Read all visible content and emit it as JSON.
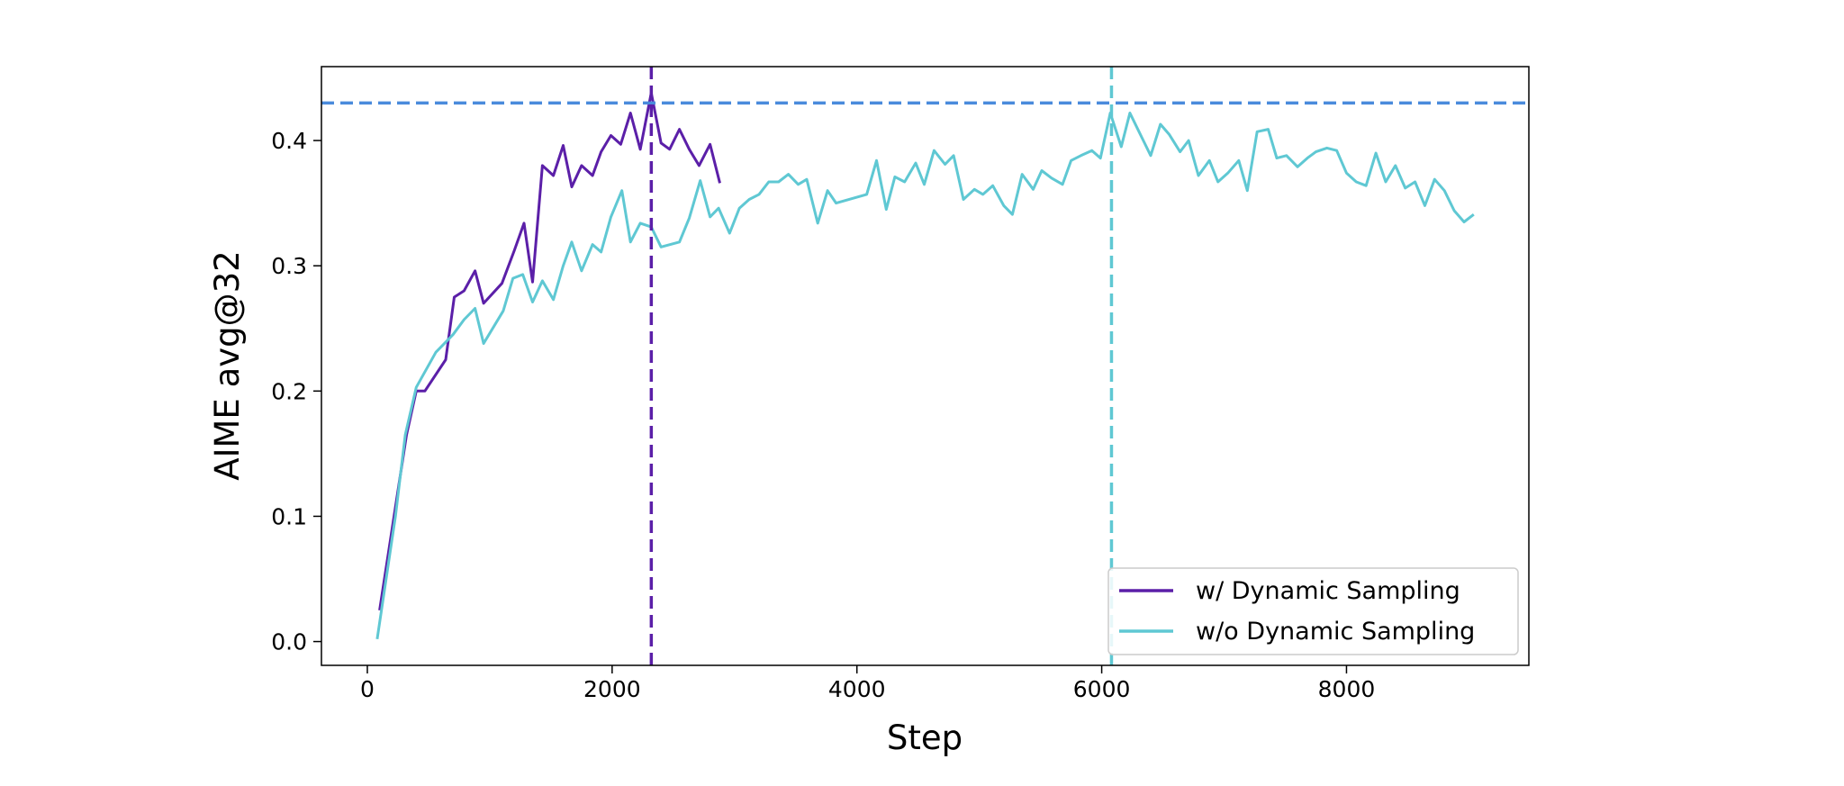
{
  "chart_data": {
    "type": "line",
    "xlabel": "Step",
    "ylabel": "AIME avg@32",
    "xlim": [
      -375,
      9490
    ],
    "ylim": [
      -0.019,
      0.459
    ],
    "xticks": [
      0,
      2000,
      4000,
      6000,
      8000
    ],
    "yticks": [
      {
        "value": 0,
        "label": "0.0"
      },
      0.1,
      0.2,
      0.3,
      0.4
    ],
    "legend": "lower right",
    "hlines": [
      {
        "value": 0.43,
        "color": "#4a8bdc"
      }
    ],
    "vlines": [
      {
        "value": 2320,
        "color": "#5b1fa8"
      },
      {
        "value": 6080,
        "color": "#5fc8d3"
      }
    ],
    "series": [
      {
        "name": "w/ Dynamic Sampling",
        "color": "#5b1fa8",
        "x": [
          100,
          320,
          400,
          470,
          640,
          710,
          790,
          880,
          950,
          1100,
          1200,
          1280,
          1350,
          1430,
          1520,
          1600,
          1670,
          1750,
          1840,
          1910,
          1990,
          2070,
          2150,
          2230,
          2320,
          2400,
          2470,
          2550,
          2630,
          2710,
          2800,
          2880
        ],
        "values": [
          0.025,
          0.165,
          0.2,
          0.2,
          0.225,
          0.275,
          0.28,
          0.296,
          0.27,
          0.286,
          0.312,
          0.334,
          0.287,
          0.38,
          0.372,
          0.396,
          0.363,
          0.38,
          0.372,
          0.391,
          0.404,
          0.397,
          0.422,
          0.393,
          0.438,
          0.398,
          0.393,
          0.409,
          0.393,
          0.38,
          0.397,
          0.366
        ]
      },
      {
        "name": "w/o Dynamic Sampling",
        "color": "#5fc8d3",
        "x": [
          80,
          230,
          310,
          400,
          560,
          700,
          790,
          880,
          950,
          1110,
          1190,
          1270,
          1350,
          1430,
          1520,
          1600,
          1670,
          1750,
          1840,
          1910,
          1990,
          2080,
          2150,
          2230,
          2320,
          2400,
          2550,
          2630,
          2720,
          2800,
          2870,
          2960,
          3040,
          3120,
          3200,
          3280,
          3360,
          3440,
          3520,
          3590,
          3680,
          3760,
          3830,
          4080,
          4160,
          4240,
          4310,
          4390,
          4480,
          4550,
          4630,
          4720,
          4790,
          4870,
          4960,
          5030,
          5110,
          5200,
          5270,
          5350,
          5440,
          5510,
          5590,
          5680,
          5750,
          5830,
          5920,
          5990,
          6070,
          6160,
          6230,
          6310,
          6400,
          6480,
          6550,
          6640,
          6710,
          6790,
          6880,
          6950,
          7030,
          7120,
          7190,
          7270,
          7360,
          7430,
          7510,
          7600,
          7680,
          7750,
          7840,
          7920,
          8000,
          8080,
          8160,
          8240,
          8320,
          8400,
          8480,
          8560,
          8640,
          8720,
          8800,
          8880,
          8960,
          9040
        ],
        "values": [
          0.002,
          0.1,
          0.165,
          0.203,
          0.231,
          0.245,
          0.257,
          0.266,
          0.238,
          0.264,
          0.29,
          0.293,
          0.271,
          0.288,
          0.273,
          0.3,
          0.319,
          0.296,
          0.317,
          0.311,
          0.339,
          0.36,
          0.319,
          0.334,
          0.331,
          0.315,
          0.319,
          0.338,
          0.368,
          0.339,
          0.346,
          0.326,
          0.346,
          0.353,
          0.357,
          0.367,
          0.367,
          0.373,
          0.365,
          0.369,
          0.334,
          0.36,
          0.35,
          0.357,
          0.384,
          0.345,
          0.371,
          0.367,
          0.382,
          0.365,
          0.392,
          0.381,
          0.388,
          0.353,
          0.361,
          0.357,
          0.364,
          0.348,
          0.341,
          0.373,
          0.361,
          0.376,
          0.37,
          0.365,
          0.384,
          0.388,
          0.392,
          0.386,
          0.422,
          0.395,
          0.422,
          0.406,
          0.388,
          0.413,
          0.405,
          0.391,
          0.4,
          0.372,
          0.384,
          0.367,
          0.374,
          0.384,
          0.36,
          0.407,
          0.409,
          0.386,
          0.388,
          0.379,
          0.386,
          0.391,
          0.394,
          0.392,
          0.374,
          0.367,
          0.364,
          0.39,
          0.367,
          0.38,
          0.362,
          0.367,
          0.348,
          0.369,
          0.36,
          0.344,
          0.335,
          0.341
        ]
      }
    ]
  }
}
